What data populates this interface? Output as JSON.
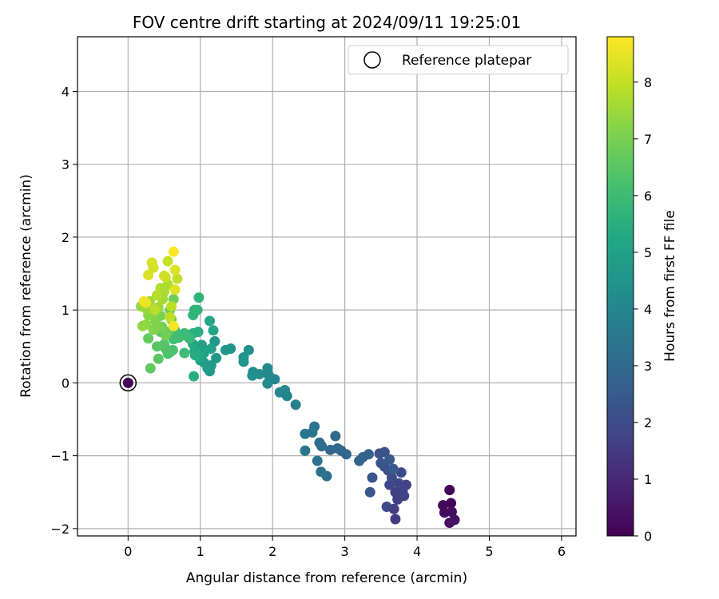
{
  "chart_data": {
    "type": "scatter",
    "title": "FOV centre drift starting at 2024/09/11 19:25:01",
    "xlabel": "Angular distance from reference (arcmin)",
    "ylabel": "Rotation from reference (arcmin)",
    "xlim": [
      -0.7,
      6.2
    ],
    "ylim": [
      -2.1,
      4.75
    ],
    "xticks": [
      0,
      1,
      2,
      3,
      4,
      5,
      6
    ],
    "yticks": [
      -2,
      -1,
      0,
      1,
      2,
      3,
      4
    ],
    "grid": true,
    "legend": {
      "position": "top-right",
      "entries": [
        "Reference platepar"
      ]
    },
    "colorbar": {
      "label": "Hours from first FF file",
      "range": [
        0,
        8.8
      ],
      "ticks": [
        0,
        1,
        2,
        3,
        4,
        5,
        6,
        7,
        8
      ],
      "colormap": "viridis"
    },
    "reference_point": {
      "x": 0,
      "y": 0,
      "hours": 0
    },
    "points": [
      [
        0.0,
        0.0,
        0.0
      ],
      [
        4.45,
        -1.47,
        0.1
      ],
      [
        4.47,
        -1.65,
        0.15
      ],
      [
        4.36,
        -1.68,
        0.2
      ],
      [
        4.38,
        -1.78,
        0.25
      ],
      [
        4.48,
        -1.77,
        0.3
      ],
      [
        4.45,
        -1.92,
        0.35
      ],
      [
        4.52,
        -1.88,
        0.4
      ],
      [
        3.7,
        -1.87,
        1.5
      ],
      [
        3.68,
        -1.73,
        1.55
      ],
      [
        3.73,
        -1.6,
        1.6
      ],
      [
        3.7,
        -1.5,
        1.65
      ],
      [
        3.8,
        -1.48,
        1.7
      ],
      [
        3.82,
        -1.55,
        1.75
      ],
      [
        3.85,
        -1.4,
        1.8
      ],
      [
        3.75,
        -1.38,
        1.85
      ],
      [
        3.62,
        -1.4,
        1.9
      ],
      [
        3.58,
        -1.7,
        1.95
      ],
      [
        3.78,
        -1.23,
        2.0
      ],
      [
        3.65,
        -1.3,
        2.05
      ],
      [
        3.6,
        -1.2,
        2.1
      ],
      [
        3.55,
        -1.15,
        2.15
      ],
      [
        3.48,
        -0.97,
        2.2
      ],
      [
        3.55,
        -0.95,
        2.25
      ],
      [
        3.5,
        -1.1,
        2.3
      ],
      [
        3.38,
        -1.3,
        2.35
      ],
      [
        3.35,
        -1.5,
        2.4
      ],
      [
        3.62,
        -1.05,
        2.45
      ],
      [
        3.67,
        -1.18,
        2.5
      ],
      [
        3.33,
        -0.98,
        2.7
      ],
      [
        3.25,
        -1.02,
        2.75
      ],
      [
        3.2,
        -1.07,
        2.8
      ],
      [
        3.02,
        -0.98,
        2.85
      ],
      [
        2.95,
        -0.93,
        2.9
      ],
      [
        2.9,
        -0.9,
        2.95
      ],
      [
        2.8,
        -0.92,
        3.0
      ],
      [
        2.87,
        -0.73,
        3.05
      ],
      [
        2.65,
        -0.82,
        3.1
      ],
      [
        2.68,
        -0.87,
        3.15
      ],
      [
        2.75,
        -1.28,
        3.2
      ],
      [
        2.67,
        -1.22,
        3.25
      ],
      [
        2.62,
        -1.07,
        3.3
      ],
      [
        2.58,
        -0.6,
        3.35
      ],
      [
        2.55,
        -0.68,
        3.4
      ],
      [
        2.45,
        -0.7,
        3.45
      ],
      [
        2.45,
        -0.93,
        3.5
      ],
      [
        2.32,
        -0.3,
        3.8
      ],
      [
        2.2,
        -0.18,
        3.9
      ],
      [
        2.1,
        -0.13,
        3.95
      ],
      [
        2.17,
        -0.1,
        4.0
      ],
      [
        2.03,
        0.05,
        4.05
      ],
      [
        1.95,
        0.1,
        4.1
      ],
      [
        1.93,
        0.2,
        4.15
      ],
      [
        1.93,
        -0.01,
        4.2
      ],
      [
        1.82,
        0.12,
        4.25
      ],
      [
        1.73,
        0.15,
        4.3
      ],
      [
        1.72,
        0.1,
        4.35
      ],
      [
        1.67,
        0.45,
        4.4
      ],
      [
        1.6,
        0.35,
        4.45
      ],
      [
        1.6,
        0.29,
        4.5
      ],
      [
        1.42,
        0.47,
        4.55
      ],
      [
        1.35,
        0.45,
        4.6
      ],
      [
        1.2,
        0.57,
        4.65
      ],
      [
        1.22,
        0.34,
        4.7
      ],
      [
        1.15,
        0.24,
        4.75
      ],
      [
        1.13,
        0.16,
        4.8
      ],
      [
        1.1,
        0.2,
        4.85
      ],
      [
        1.05,
        0.28,
        4.9
      ],
      [
        1.0,
        0.31,
        4.95
      ],
      [
        1.05,
        0.41,
        5.0
      ],
      [
        1.02,
        0.52,
        5.05
      ],
      [
        1.15,
        0.47,
        5.1
      ],
      [
        1.18,
        0.72,
        5.15
      ],
      [
        1.13,
        0.85,
        5.2
      ],
      [
        1.0,
        0.36,
        5.25
      ],
      [
        0.92,
        0.43,
        5.3
      ],
      [
        0.9,
        0.53,
        5.35
      ],
      [
        0.93,
        0.38,
        5.4
      ],
      [
        0.91,
        0.09,
        5.45
      ],
      [
        0.9,
        0.68,
        5.5
      ],
      [
        0.97,
        0.7,
        5.55
      ],
      [
        0.92,
        1.0,
        5.6
      ],
      [
        0.9,
        0.93,
        5.65
      ],
      [
        0.98,
        1.17,
        5.7
      ],
      [
        0.96,
        1.0,
        5.75
      ],
      [
        0.85,
        0.61,
        5.85
      ],
      [
        0.8,
        0.65,
        5.9
      ],
      [
        0.78,
        0.68,
        5.95
      ],
      [
        0.78,
        0.41,
        6.0
      ],
      [
        0.7,
        0.62,
        6.05
      ],
      [
        0.65,
        0.72,
        6.1
      ],
      [
        0.63,
        0.6,
        6.15
      ],
      [
        0.58,
        0.42,
        6.2
      ],
      [
        0.62,
        0.45,
        6.25
      ],
      [
        0.55,
        0.4,
        6.3
      ],
      [
        0.52,
        0.47,
        6.35
      ],
      [
        0.5,
        0.53,
        6.4
      ],
      [
        0.45,
        0.7,
        6.45
      ],
      [
        0.4,
        0.5,
        6.5
      ],
      [
        0.42,
        0.33,
        6.55
      ],
      [
        0.31,
        0.2,
        6.6
      ],
      [
        0.28,
        0.61,
        6.65
      ],
      [
        0.55,
        0.7,
        6.7
      ],
      [
        0.6,
        0.87,
        6.75
      ],
      [
        0.58,
        1.0,
        6.8
      ],
      [
        0.63,
        1.15,
        6.85
      ],
      [
        0.52,
        0.65,
        6.9
      ],
      [
        0.47,
        0.77,
        6.95
      ],
      [
        0.45,
        0.92,
        7.0
      ],
      [
        0.4,
        0.75,
        7.05
      ],
      [
        0.38,
        0.85,
        7.1
      ],
      [
        0.35,
        0.73,
        7.15
      ],
      [
        0.35,
        0.95,
        7.2
      ],
      [
        0.28,
        0.93,
        7.25
      ],
      [
        0.25,
        0.8,
        7.3
      ],
      [
        0.2,
        0.78,
        7.35
      ],
      [
        0.18,
        1.05,
        7.4
      ],
      [
        0.25,
        1.02,
        7.45
      ],
      [
        0.3,
        1.12,
        7.5
      ],
      [
        0.42,
        1.04,
        7.55
      ],
      [
        0.48,
        1.15,
        7.6
      ],
      [
        0.5,
        1.25,
        7.65
      ],
      [
        0.55,
        1.35,
        7.7
      ],
      [
        0.45,
        1.3,
        7.75
      ],
      [
        0.4,
        1.2,
        7.8
      ],
      [
        0.37,
        1.0,
        7.85
      ],
      [
        0.6,
        1.05,
        7.9
      ],
      [
        0.58,
        0.9,
        7.95
      ],
      [
        0.68,
        1.43,
        8.0
      ],
      [
        0.55,
        1.67,
        8.05
      ],
      [
        0.52,
        1.45,
        8.1
      ],
      [
        0.5,
        1.47,
        8.15
      ],
      [
        0.35,
        1.58,
        8.2
      ],
      [
        0.33,
        1.65,
        8.25
      ],
      [
        0.28,
        1.48,
        8.3
      ],
      [
        0.65,
        1.55,
        8.35
      ],
      [
        0.65,
        1.28,
        8.4
      ],
      [
        0.25,
        1.1,
        8.5
      ],
      [
        0.22,
        1.12,
        8.6
      ],
      [
        0.63,
        0.78,
        8.65
      ],
      [
        0.63,
        1.8,
        8.75
      ]
    ]
  }
}
